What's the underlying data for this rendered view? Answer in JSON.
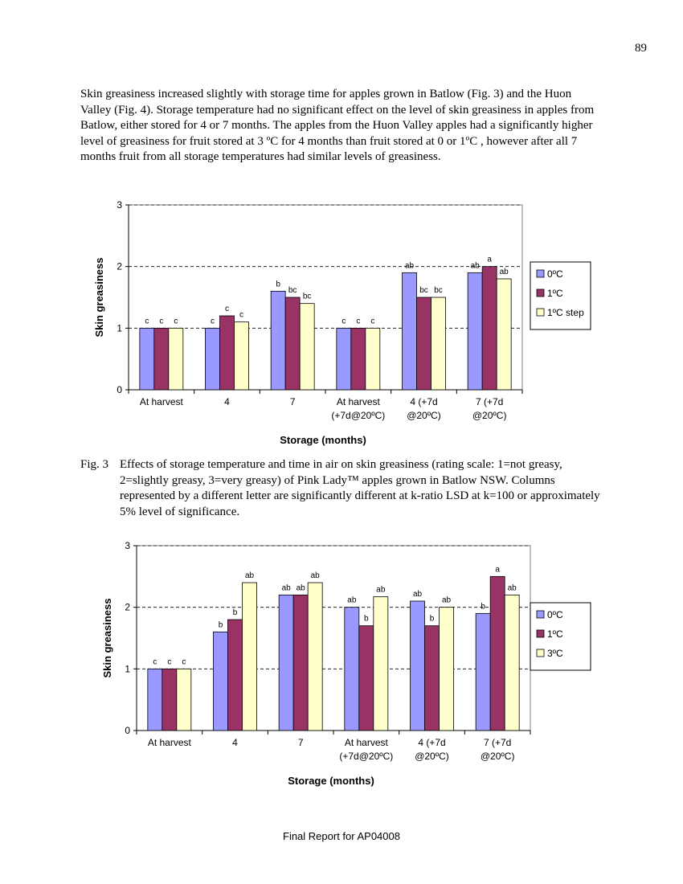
{
  "page": {
    "number": "89",
    "intro": "Skin greasiness increased slightly with storage time for apples grown in Batlow (Fig. 3) and the Huon Valley (Fig. 4). Storage temperature had no significant effect on the level of skin greasiness in apples from Batlow, either stored for 4 or 7 months.  The apples from the Huon Valley apples had a significantly higher level of greasiness for fruit stored at 3 ºC for 4 months than fruit stored at 0 or 1ºC , however after all 7 months fruit from all storage temperatures had similar levels of greasiness.",
    "fig3_label": "Fig. 3",
    "fig3_caption": "Effects of storage temperature and time in air on skin greasiness (rating scale: 1=not greasy, 2=slightly greasy, 3=very greasy) of Pink Lady™ apples grown in Batlow NSW. Columns represented by a different letter are significantly different at k-ratio LSD at k=100 or approximately 5% level of significance.",
    "footer": "Final Report for AP04008"
  },
  "chart_data": [
    {
      "type": "bar",
      "title": "",
      "xlabel": "Storage (months)",
      "ylabel": "Skin greasiness",
      "ylim": [
        0,
        3
      ],
      "yticks": [
        0,
        1,
        2,
        3
      ],
      "grid": "dashed horizontal",
      "legend_position": "right",
      "categories": [
        [
          "At harvest"
        ],
        [
          "4"
        ],
        [
          "7"
        ],
        [
          "At harvest",
          "(+7d@20ºC)"
        ],
        [
          "4 (+7d",
          "@20ºC)"
        ],
        [
          "7 (+7d",
          "@20ºC)"
        ]
      ],
      "series": [
        {
          "name": "0ºC",
          "color": "#9999ff",
          "values": [
            1.0,
            1.0,
            1.6,
            1.0,
            1.9,
            1.9
          ],
          "labels": [
            "c",
            "c",
            "b",
            "c",
            "ab",
            "ab"
          ]
        },
        {
          "name": "1ºC",
          "color": "#993366",
          "values": [
            1.0,
            1.2,
            1.5,
            1.0,
            1.5,
            2.0
          ],
          "labels": [
            "c",
            "c",
            "bc",
            "c",
            "bc",
            "a"
          ]
        },
        {
          "name": "1ºC step",
          "color": "#ffffcc",
          "values": [
            1.0,
            1.1,
            1.4,
            1.0,
            1.5,
            1.8
          ],
          "labels": [
            "c",
            "c",
            "bc",
            "c",
            "bc",
            "ab"
          ]
        }
      ]
    },
    {
      "type": "bar",
      "title": "",
      "xlabel": "Storage (months)",
      "ylabel": "Skin greasiness",
      "ylim": [
        0,
        3
      ],
      "yticks": [
        0,
        1,
        2,
        3
      ],
      "grid": "dashed horizontal",
      "legend_position": "right",
      "categories": [
        [
          "At harvest"
        ],
        [
          "4"
        ],
        [
          "7"
        ],
        [
          "At harvest",
          "(+7d@20ºC)"
        ],
        [
          "4 (+7d",
          "@20ºC)"
        ],
        [
          "7 (+7d",
          "@20ºC)"
        ]
      ],
      "series": [
        {
          "name": "0ºC",
          "color": "#9999ff",
          "values": [
            1.0,
            1.6,
            2.2,
            2.0,
            2.1,
            1.9
          ],
          "labels": [
            "c",
            "b",
            "ab",
            "ab",
            "ab",
            "b"
          ]
        },
        {
          "name": "1ºC",
          "color": "#993366",
          "values": [
            1.0,
            1.8,
            2.2,
            1.7,
            1.7,
            2.5
          ],
          "labels": [
            "c",
            "b",
            "ab",
            "b",
            "b",
            "a"
          ]
        },
        {
          "name": "3ºC",
          "color": "#ffffcc",
          "values": [
            1.0,
            2.4,
            2.4,
            2.17,
            2.0,
            2.2
          ],
          "labels": [
            "c",
            "ab",
            "ab",
            "ab",
            "ab",
            "ab"
          ]
        }
      ]
    }
  ]
}
